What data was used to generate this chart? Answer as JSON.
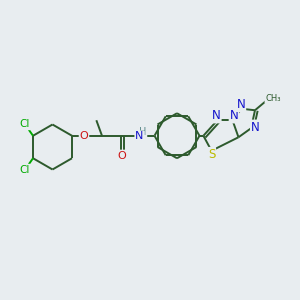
{
  "bg_color": "#e8edf0",
  "bond_color": "#2d5a2d",
  "atom_colors": {
    "C": "#2d5a2d",
    "N": "#1414cc",
    "O": "#cc1414",
    "S": "#bbbb00",
    "Cl": "#00aa00",
    "H": "#5a8a8a"
  },
  "lw": 1.4,
  "fs": 7.5
}
